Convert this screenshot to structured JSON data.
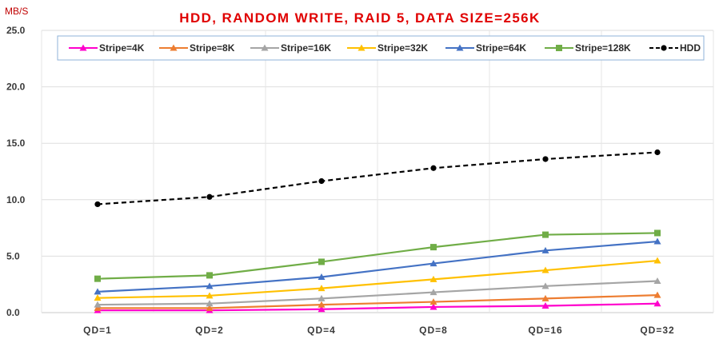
{
  "chart_data": {
    "type": "line",
    "title": "HDD, RANDOM WRITE, RAID 5, DATA SIZE=256K",
    "ylabel": "MB/S",
    "xlabel": "",
    "categories": [
      "QD=1",
      "QD=2",
      "QD=4",
      "QD=8",
      "QD=16",
      "QD=32"
    ],
    "ylim": [
      0,
      25
    ],
    "yticks": [
      "0.0",
      "5.0",
      "10.0",
      "15.0",
      "20.0",
      "25.0"
    ],
    "grid": true,
    "legend_position": "top",
    "series": [
      {
        "name": "Stripe=4K",
        "color": "#ff00cc",
        "marker": "triangle",
        "dashed": false,
        "values": [
          0.2,
          0.2,
          0.3,
          0.5,
          0.6,
          0.8
        ]
      },
      {
        "name": "Stripe=8K",
        "color": "#ed7d31",
        "marker": "triangle",
        "dashed": false,
        "values": [
          0.4,
          0.4,
          0.7,
          0.95,
          1.25,
          1.55
        ]
      },
      {
        "name": "Stripe=16K",
        "color": "#a5a5a5",
        "marker": "triangle",
        "dashed": false,
        "values": [
          0.7,
          0.8,
          1.25,
          1.8,
          2.35,
          2.8
        ]
      },
      {
        "name": "Stripe=32K",
        "color": "#ffc000",
        "marker": "triangle",
        "dashed": false,
        "values": [
          1.3,
          1.5,
          2.15,
          2.95,
          3.75,
          4.6
        ]
      },
      {
        "name": "Stripe=64K",
        "color": "#4472c4",
        "marker": "triangle",
        "dashed": false,
        "values": [
          1.85,
          2.35,
          3.15,
          4.35,
          5.5,
          6.3
        ]
      },
      {
        "name": "Stripe=128K",
        "color": "#70ad47",
        "marker": "square",
        "dashed": false,
        "values": [
          3.0,
          3.3,
          4.5,
          5.8,
          6.9,
          7.05
        ]
      },
      {
        "name": "HDD",
        "color": "#000000",
        "marker": "circle",
        "dashed": true,
        "values": [
          9.6,
          10.25,
          11.65,
          12.8,
          13.6,
          14.2
        ]
      }
    ]
  }
}
